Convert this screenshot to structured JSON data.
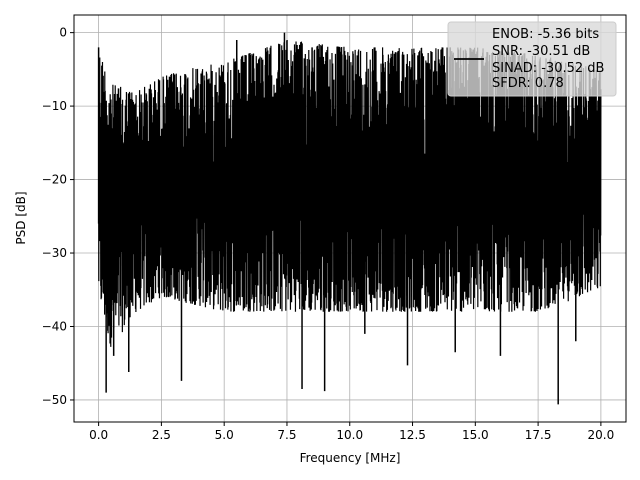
{
  "chart_data": {
    "type": "line",
    "xlabel": "Frequency [MHz]",
    "ylabel": "PSD [dB]",
    "xlim": [
      -0.98,
      21.0
    ],
    "ylim": [
      -53.0,
      2.4
    ],
    "x_ticks": [
      0.0,
      2.5,
      5.0,
      7.5,
      10.0,
      12.5,
      15.0,
      17.5,
      20.0
    ],
    "x_tick_labels": [
      "0.0",
      "2.5",
      "5.0",
      "7.5",
      "10.0",
      "12.5",
      "15.0",
      "17.5",
      "20.0"
    ],
    "y_ticks": [
      0,
      -10,
      -20,
      -30,
      -40,
      -50
    ],
    "y_tick_labels": [
      "0",
      "−10",
      "−20",
      "−30",
      "−40",
      "−50"
    ],
    "grid": true,
    "legend_placement": "upper-right",
    "legend_lines": [
      "ENOB: -5.36 bits",
      "SNR: -30.51 dB",
      "SINAD: -30.52 dB",
      "SFDR: 0.78"
    ],
    "series": [
      {
        "color": "#000000",
        "x_range": [
          0.0,
          20.0
        ],
        "upper_envelope": [
          [
            0.0,
            -2
          ],
          [
            0.5,
            -7
          ],
          [
            1.5,
            -8
          ],
          [
            2.5,
            -6
          ],
          [
            3.5,
            -5
          ],
          [
            5.0,
            -4
          ],
          [
            7.5,
            -1
          ],
          [
            10.0,
            -2
          ],
          [
            12.5,
            -2
          ],
          [
            15.0,
            -2
          ],
          [
            17.5,
            -3
          ],
          [
            20.0,
            -5
          ]
        ],
        "lower_envelope": [
          [
            0.0,
            -36
          ],
          [
            0.5,
            -43
          ],
          [
            1.5,
            -38
          ],
          [
            2.5,
            -36
          ],
          [
            5.0,
            -38
          ],
          [
            7.5,
            -38
          ],
          [
            10.0,
            -38
          ],
          [
            12.5,
            -38
          ],
          [
            15.0,
            -38
          ],
          [
            17.5,
            -38
          ],
          [
            20.0,
            -35
          ]
        ],
        "notable_minima": [
          [
            0.3,
            -49
          ],
          [
            0.6,
            -44
          ],
          [
            1.2,
            -46.2
          ],
          [
            3.3,
            -47.4
          ],
          [
            8.1,
            -48.5
          ],
          [
            9.0,
            -48.8
          ],
          [
            10.6,
            -41
          ],
          [
            12.3,
            -45.3
          ],
          [
            14.2,
            -43.5
          ],
          [
            16.0,
            -44
          ],
          [
            18.3,
            -50.6
          ],
          [
            19.0,
            -42
          ]
        ],
        "notable_maxima": [
          [
            0.0,
            -2.0
          ],
          [
            5.5,
            -1.0
          ],
          [
            7.4,
            0.0
          ],
          [
            8.5,
            -2.0
          ],
          [
            11.0,
            -2.0
          ],
          [
            14.0,
            -2.0
          ]
        ]
      }
    ]
  }
}
